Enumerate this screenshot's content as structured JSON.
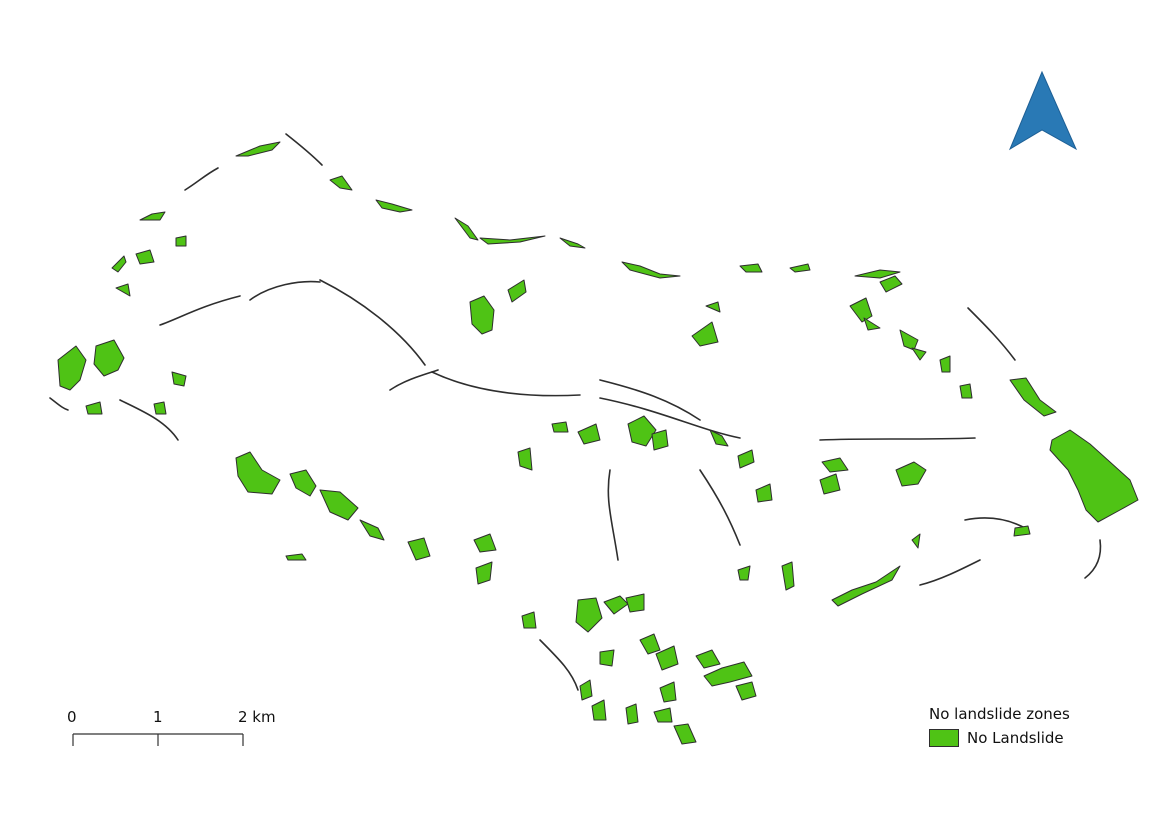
{
  "map": {
    "feature_fill": "#4fc315",
    "outline_color": "#2e2e2e",
    "north_arrow_color": "#2979b5"
  },
  "scale_bar": {
    "ticks": [
      "0",
      "1",
      "2 km"
    ]
  },
  "legend": {
    "title": "No landslide zones",
    "items": [
      {
        "label": "No Landslide",
        "color": "#4fc315"
      }
    ]
  }
}
